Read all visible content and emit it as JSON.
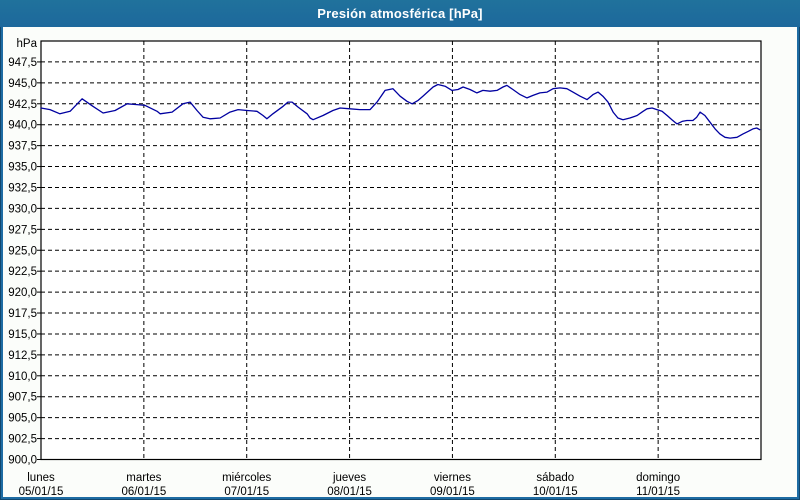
{
  "window": {
    "title": "Presión atmosférica [hPa]",
    "titlebar_color": "#1e6ca3",
    "canvas_color": "#fbfdfa"
  },
  "chart_data": {
    "type": "line",
    "title": "Presión atmosférica [hPa]",
    "ylabel": "hPa",
    "ylim": [
      900,
      950
    ],
    "ytick_step": 2.5,
    "y_ticks": [
      947.5,
      945.0,
      942.5,
      940.0,
      937.5,
      935.0,
      932.5,
      930.0,
      927.5,
      925.0,
      922.5,
      920.0,
      917.5,
      915.0,
      912.5,
      910.0,
      907.5,
      905.0,
      902.5,
      900.0
    ],
    "decimal_separator": ",",
    "grid": "dashed",
    "legend_position": "none",
    "line_color": "#0000a0",
    "grid_color": "#000000",
    "x_span_days": 7,
    "x_categories": [
      {
        "day": "lunes",
        "date": "05/01/15"
      },
      {
        "day": "martes",
        "date": "06/01/15"
      },
      {
        "day": "miércoles",
        "date": "07/01/15"
      },
      {
        "day": "jueves",
        "date": "08/01/15"
      },
      {
        "day": "viernes",
        "date": "09/01/15"
      },
      {
        "day": "sábado",
        "date": "10/01/15"
      },
      {
        "day": "domingo",
        "date": "11/01/15"
      }
    ],
    "series": [
      {
        "name": "Presión atmosférica",
        "unit": "hPa",
        "points": [
          [
            0.0,
            942.0
          ],
          [
            2.1,
            941.8
          ],
          [
            4.4,
            941.3
          ],
          [
            6.8,
            941.6
          ],
          [
            9.6,
            943.1
          ],
          [
            12.1,
            942.2
          ],
          [
            14.5,
            941.4
          ],
          [
            17.3,
            941.7
          ],
          [
            20.1,
            942.5
          ],
          [
            22.4,
            942.4
          ],
          [
            24.3,
            942.3
          ],
          [
            27.1,
            941.6
          ],
          [
            27.8,
            941.3
          ],
          [
            30.6,
            941.5
          ],
          [
            33.1,
            942.5
          ],
          [
            34.8,
            942.7
          ],
          [
            36.4,
            941.7
          ],
          [
            37.8,
            940.9
          ],
          [
            39.4,
            940.7
          ],
          [
            41.8,
            940.8
          ],
          [
            44.1,
            941.5
          ],
          [
            46.0,
            941.8
          ],
          [
            48.1,
            941.7
          ],
          [
            50.4,
            941.6
          ],
          [
            51.8,
            941.1
          ],
          [
            52.7,
            940.7
          ],
          [
            54.1,
            941.3
          ],
          [
            56.5,
            942.2
          ],
          [
            57.6,
            942.7
          ],
          [
            58.6,
            942.7
          ],
          [
            60.0,
            942.1
          ],
          [
            62.1,
            941.3
          ],
          [
            62.8,
            940.8
          ],
          [
            63.5,
            940.6
          ],
          [
            65.8,
            941.1
          ],
          [
            68.1,
            941.7
          ],
          [
            69.8,
            942.0
          ],
          [
            72.1,
            941.9
          ],
          [
            74.4,
            941.8
          ],
          [
            76.8,
            941.8
          ],
          [
            78.4,
            942.7
          ],
          [
            80.3,
            944.1
          ],
          [
            82.1,
            944.3
          ],
          [
            83.8,
            943.4
          ],
          [
            85.4,
            942.8
          ],
          [
            86.6,
            942.5
          ],
          [
            88.0,
            942.9
          ],
          [
            89.1,
            943.4
          ],
          [
            91.5,
            944.5
          ],
          [
            92.6,
            944.8
          ],
          [
            94.3,
            944.6
          ],
          [
            95.9,
            944.1
          ],
          [
            97.3,
            944.2
          ],
          [
            98.5,
            944.5
          ],
          [
            100.1,
            944.2
          ],
          [
            101.7,
            943.8
          ],
          [
            103.1,
            944.1
          ],
          [
            104.8,
            944.0
          ],
          [
            106.4,
            944.1
          ],
          [
            107.8,
            944.5
          ],
          [
            108.7,
            944.7
          ],
          [
            110.1,
            944.2
          ],
          [
            111.8,
            943.6
          ],
          [
            113.4,
            943.2
          ],
          [
            114.8,
            943.5
          ],
          [
            116.4,
            943.8
          ],
          [
            118.1,
            943.9
          ],
          [
            119.5,
            944.3
          ],
          [
            121.1,
            944.4
          ],
          [
            122.7,
            944.3
          ],
          [
            124.1,
            943.9
          ],
          [
            125.8,
            943.4
          ],
          [
            127.4,
            943.0
          ],
          [
            128.8,
            943.6
          ],
          [
            130.0,
            943.9
          ],
          [
            131.1,
            943.4
          ],
          [
            132.3,
            942.7
          ],
          [
            133.5,
            941.5
          ],
          [
            134.6,
            940.8
          ],
          [
            135.8,
            940.6
          ],
          [
            137.4,
            940.8
          ],
          [
            139.1,
            941.1
          ],
          [
            140.5,
            941.6
          ],
          [
            141.4,
            941.9
          ],
          [
            142.6,
            942.0
          ],
          [
            143.7,
            941.8
          ],
          [
            144.9,
            941.6
          ],
          [
            146.1,
            941.1
          ],
          [
            147.2,
            940.6
          ],
          [
            147.9,
            940.3
          ],
          [
            148.4,
            940.1
          ],
          [
            149.6,
            940.4
          ],
          [
            150.7,
            940.5
          ],
          [
            152.1,
            940.5
          ],
          [
            153.0,
            940.9
          ],
          [
            153.8,
            941.5
          ],
          [
            154.9,
            941.1
          ],
          [
            156.1,
            940.3
          ],
          [
            157.3,
            939.5
          ],
          [
            158.4,
            938.9
          ],
          [
            159.6,
            938.5
          ],
          [
            160.8,
            938.4
          ],
          [
            162.4,
            938.5
          ],
          [
            163.8,
            938.9
          ],
          [
            165.0,
            939.2
          ],
          [
            166.1,
            939.5
          ],
          [
            167.0,
            939.6
          ],
          [
            167.7,
            939.4
          ]
        ]
      }
    ]
  }
}
